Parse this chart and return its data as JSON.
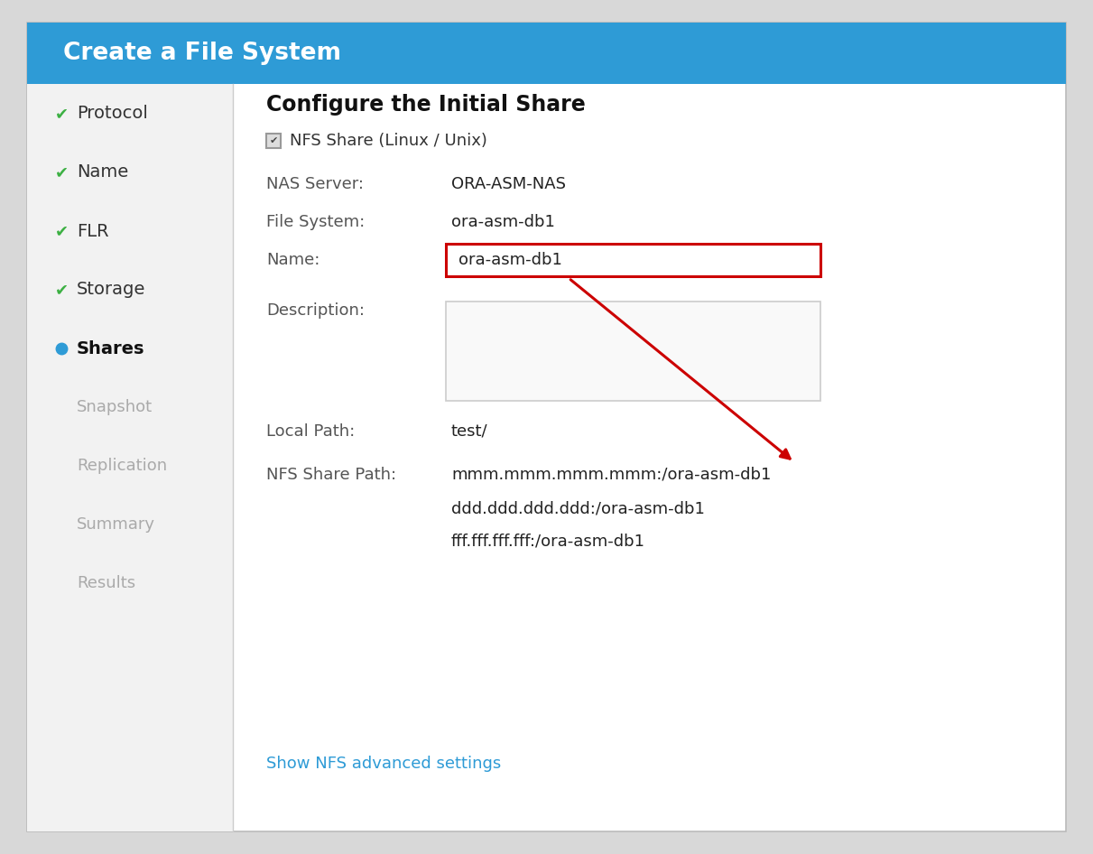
{
  "title": "Create a File System",
  "header_bg": "#2E9BD6",
  "header_text_color": "#ffffff",
  "header_fontsize": 19,
  "sidebar_bg": "#f2f2f2",
  "main_bg": "#ffffff",
  "outer_bg": "#d8d8d8",
  "sidebar_items_checked": [
    "Protocol",
    "Name",
    "FLR",
    "Storage"
  ],
  "sidebar_item_active": "Shares",
  "sidebar_items_inactive": [
    "Snapshot",
    "Replication",
    "Summary",
    "Results"
  ],
  "check_color": "#3cb043",
  "active_dot_color": "#2E9BD6",
  "active_text_color": "#111111",
  "inactive_text_color": "#aaaaaa",
  "section_title": "Configure the Initial Share",
  "checkbox_label": "NFS Share (Linux / Unix)",
  "nfs_share_lines": [
    "mmm.mmm.mmm.mmm:/ora-asm-db1",
    "ddd.ddd.ddd.ddd:/ora-asm-db1",
    "fff.fff.fff.fff:/ora-asm-db1"
  ],
  "link_text": "Show NFS advanced settings",
  "link_color": "#2E9BD6",
  "arrow_color": "#cc0000",
  "name_input_border_color": "#cc0000",
  "input_bg": "#ffffff",
  "input_border": "#cccccc",
  "textarea_bg": "#f9f9f9",
  "textarea_border": "#cccccc",
  "label_color": "#555555",
  "value_color": "#222222",
  "sidebar_checked_color": "#333333",
  "lbl_fs": 13,
  "val_fs": 13,
  "sidebar_fs": 14,
  "inactive_fs": 13
}
